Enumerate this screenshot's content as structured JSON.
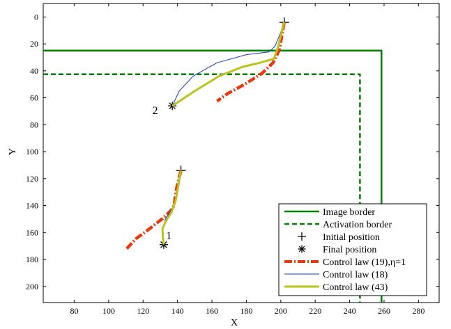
{
  "chart_data": {
    "type": "line",
    "xlabel": "X",
    "ylabel": "Y",
    "xlim": [
      62,
      292
    ],
    "ylim": [
      -10,
      212
    ],
    "y_reversed": true,
    "grid": false,
    "legend_position": "bottom-right",
    "xticks": [
      80,
      100,
      120,
      140,
      160,
      180,
      200,
      220,
      240,
      260,
      280
    ],
    "yticks": [
      0,
      20,
      40,
      60,
      80,
      100,
      120,
      140,
      160,
      180,
      200
    ],
    "xtick_labels": [
      "80",
      "100",
      "120",
      "140",
      "160",
      "180",
      "200",
      "220",
      "240",
      "260",
      "280"
    ],
    "ytick_labels": [
      "0",
      "20",
      "40",
      "60",
      "80",
      "100",
      "120",
      "140",
      "160",
      "180",
      "200"
    ],
    "annotations": [
      {
        "text": "1",
        "x": 135,
        "y": 165
      },
      {
        "text": "2",
        "x": 127,
        "y": 72
      }
    ],
    "series": [
      {
        "name": "Image border",
        "style": "solid",
        "color": "#008000",
        "x": [
          62,
          258.5,
          258.5
        ],
        "y": [
          25,
          25,
          212
        ]
      },
      {
        "name": "Activation border",
        "style": "dashed",
        "color": "#008000",
        "x": [
          62,
          246,
          246
        ],
        "y": [
          42.5,
          42.5,
          212
        ]
      },
      {
        "name": "Initial position",
        "marker": "plus",
        "color": "#000000",
        "x": [
          142,
          202
        ],
        "y": [
          114,
          4
        ]
      },
      {
        "name": "Final position",
        "marker": "asterisk",
        "color": "#000000",
        "x": [
          132,
          137
        ],
        "y": [
          169,
          66
        ]
      },
      {
        "name": "Control law (19),η=1",
        "style": "dashdot",
        "color": "#e8380d",
        "x": [
          142,
          139.5,
          138,
          136,
          131,
          124,
          116,
          110.5
        ],
        "y": [
          114,
          127,
          140,
          144,
          150,
          157,
          164.5,
          172
        ],
        "x2": [
          202,
          200.5,
          199,
          195.5,
          189,
          179,
          169,
          163
        ],
        "y2": [
          4,
          15,
          25,
          34,
          42,
          50,
          57,
          62.5
        ]
      },
      {
        "name": "Control law (18)",
        "style": "solid",
        "color": "#1a35c0",
        "x": [
          142,
          141,
          139.5,
          137,
          133,
          131.5,
          132
        ],
        "y": [
          114,
          124,
          133,
          142,
          150,
          158,
          169
        ],
        "x2": [
          202,
          199.5,
          196.5,
          193,
          180,
          163,
          149,
          141,
          137
        ],
        "y2": [
          4,
          13,
          22,
          26,
          28,
          34,
          44,
          55,
          66
        ]
      },
      {
        "name": "Control law (43)",
        "style": "solid",
        "color": "#bcc21b",
        "x": [
          142,
          140.5,
          139,
          136.5,
          133.5,
          131.3,
          131.5,
          132
        ],
        "y": [
          114,
          125,
          136,
          145,
          151,
          157,
          163,
          169
        ],
        "x2": [
          202,
          200,
          198,
          196,
          188,
          178,
          164,
          150,
          137
        ],
        "y2": [
          4,
          14,
          24,
          31,
          34,
          37,
          44,
          55,
          66
        ]
      }
    ]
  }
}
